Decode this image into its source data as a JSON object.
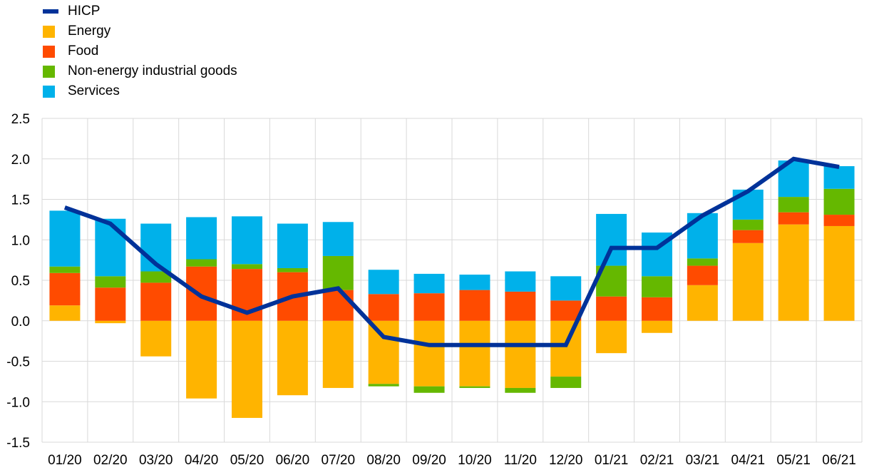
{
  "chart_data": {
    "type": "bar",
    "stacked": true,
    "categories": [
      "01/20",
      "02/20",
      "03/20",
      "04/20",
      "05/20",
      "06/20",
      "07/20",
      "08/20",
      "09/20",
      "10/20",
      "11/20",
      "12/20",
      "01/21",
      "02/21",
      "03/21",
      "04/21",
      "05/21",
      "06/21"
    ],
    "series": [
      {
        "name": "Energy",
        "color": "#FFB400",
        "values": [
          0.19,
          -0.03,
          -0.44,
          -0.96,
          -1.2,
          -0.92,
          -0.83,
          -0.78,
          -0.81,
          -0.81,
          -0.83,
          -0.69,
          -0.4,
          -0.15,
          0.44,
          0.96,
          1.19,
          1.17
        ]
      },
      {
        "name": "Food",
        "color": "#FF4B00",
        "values": [
          0.4,
          0.41,
          0.47,
          0.67,
          0.64,
          0.6,
          0.38,
          0.33,
          0.34,
          0.38,
          0.36,
          0.25,
          0.3,
          0.29,
          0.24,
          0.16,
          0.15,
          0.14
        ]
      },
      {
        "name": "Non-energy industrial goods",
        "color": "#65B800",
        "values": [
          0.08,
          0.14,
          0.14,
          0.09,
          0.06,
          0.05,
          0.42,
          -0.03,
          -0.08,
          -0.02,
          -0.06,
          -0.14,
          0.38,
          0.26,
          0.09,
          0.13,
          0.19,
          0.32
        ]
      },
      {
        "name": "Services",
        "color": "#00B1EA",
        "values": [
          0.69,
          0.71,
          0.59,
          0.52,
          0.59,
          0.55,
          0.42,
          0.3,
          0.24,
          0.19,
          0.25,
          0.3,
          0.64,
          0.54,
          0.56,
          0.37,
          0.45,
          0.28
        ]
      }
    ],
    "line": {
      "name": "HICP",
      "color": "#003299",
      "values": [
        1.4,
        1.2,
        0.7,
        0.3,
        0.1,
        0.3,
        0.4,
        -0.2,
        -0.3,
        -0.3,
        -0.3,
        -0.3,
        0.9,
        0.9,
        1.3,
        1.6,
        2.0,
        1.9
      ]
    },
    "ylim": [
      -1.5,
      2.5
    ],
    "yticks": [
      "2.5",
      "2.0",
      "1.5",
      "1.0",
      "0.5",
      "0.0",
      "-0.5",
      "-1.0",
      "-1.5"
    ],
    "title": "",
    "xlabel": "",
    "ylabel": "",
    "grid": true,
    "legend_position": "top-left"
  }
}
